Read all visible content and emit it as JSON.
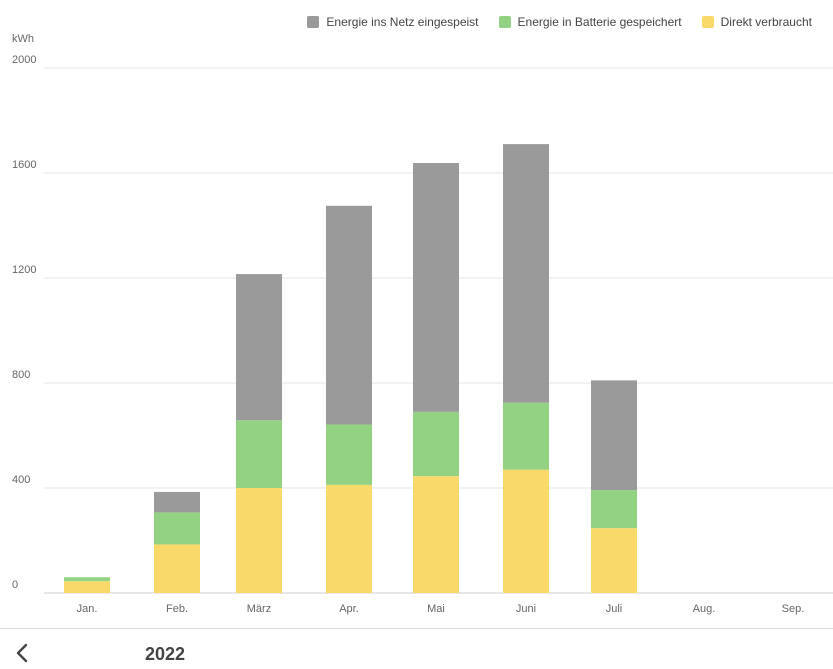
{
  "legend": [
    {
      "label": "Energie ins Netz eingespeist",
      "color": "#9a9a9a"
    },
    {
      "label": "Energie in Batterie gespeichert",
      "color": "#93d283"
    },
    {
      "label": "Direkt verbraucht",
      "color": "#f8d96a"
    }
  ],
  "footer": {
    "year": "2022",
    "back_icon": "chevron-left-icon"
  },
  "chart_data": {
    "type": "bar",
    "stacked": true,
    "ylabel": "kWh",
    "ylim": [
      0,
      2000
    ],
    "yticks": [
      "0",
      "400",
      "800",
      "1200",
      "1600",
      "2000"
    ],
    "categories": [
      "Jan.",
      "Feb.",
      "März",
      "Apr.",
      "Mai",
      "Juni",
      "Juli",
      "Aug.",
      "Sep."
    ],
    "series": [
      {
        "name": "Direkt verbraucht",
        "color": "#f8d96a",
        "values": [
          45,
          185,
          400,
          412,
          445,
          470,
          247,
          0,
          0
        ]
      },
      {
        "name": "Energie in Batterie gespeichert",
        "color": "#93d283",
        "values": [
          15,
          122,
          258,
          230,
          245,
          255,
          145,
          0,
          0
        ]
      },
      {
        "name": "Energie ins Netz eingespeist",
        "color": "#9a9a9a",
        "values": [
          0,
          78,
          557,
          833,
          948,
          985,
          418,
          0,
          0
        ]
      }
    ],
    "grid": true
  }
}
